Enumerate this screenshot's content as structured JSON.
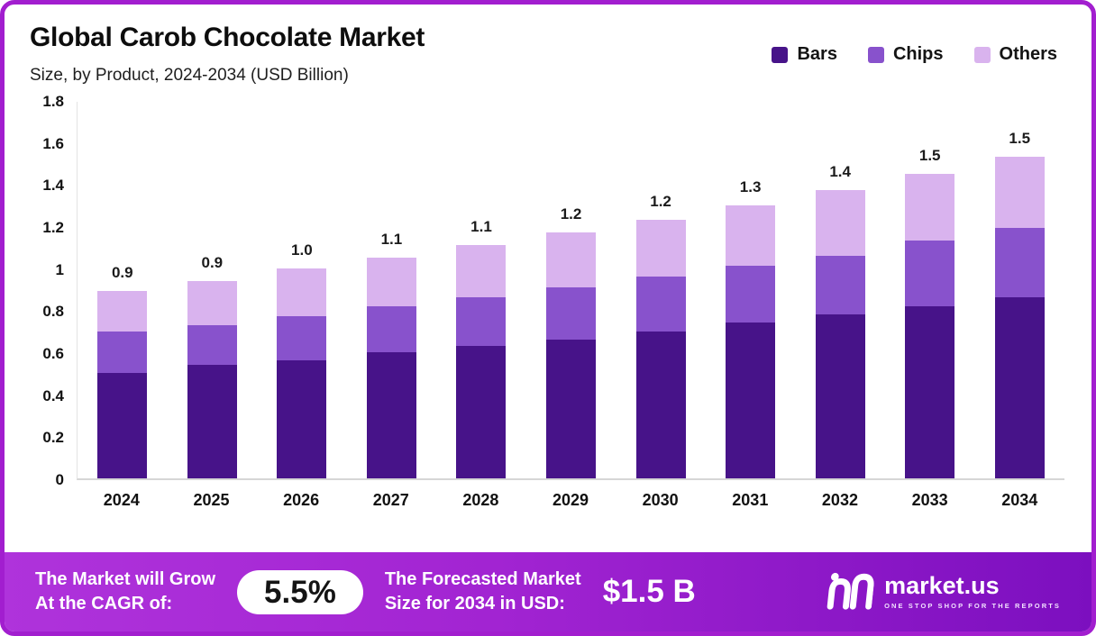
{
  "header": {
    "title": "Global Carob Chocolate Market",
    "subtitle": "Size, by Product, 2024-2034 (USD Billion)"
  },
  "chart_data": {
    "type": "bar",
    "stacked": true,
    "title": "Global Carob Chocolate Market Size, by Product, 2024-2034 (USD Billion)",
    "xlabel": "",
    "ylabel": "USD Billion",
    "ylim": [
      0,
      1.8
    ],
    "yticks": [
      "1.8",
      "1.6",
      "1.4",
      "1.2",
      "1",
      "0.8",
      "0.6",
      "0.4",
      "0.2",
      "0"
    ],
    "grid": false,
    "legend_position": "top-right",
    "categories": [
      "2024",
      "2025",
      "2026",
      "2027",
      "2028",
      "2029",
      "2030",
      "2031",
      "2032",
      "2033",
      "2034"
    ],
    "series": [
      {
        "name": "Bars",
        "color": "#471389",
        "values": [
          0.5,
          0.54,
          0.56,
          0.6,
          0.63,
          0.66,
          0.7,
          0.74,
          0.78,
          0.82,
          0.86
        ]
      },
      {
        "name": "Chips",
        "color": "#8852CC",
        "values": [
          0.2,
          0.19,
          0.21,
          0.22,
          0.23,
          0.25,
          0.26,
          0.27,
          0.28,
          0.31,
          0.33
        ]
      },
      {
        "name": "Others",
        "color": "#D9B3EE",
        "values": [
          0.19,
          0.21,
          0.23,
          0.23,
          0.25,
          0.26,
          0.27,
          0.29,
          0.31,
          0.32,
          0.34
        ]
      }
    ],
    "totals": [
      "0.9",
      "0.9",
      "1.0",
      "1.1",
      "1.1",
      "1.2",
      "1.2",
      "1.3",
      "1.4",
      "1.5",
      "1.5"
    ]
  },
  "footer": {
    "cagr_line1": "The Market will Grow",
    "cagr_line2": "At the CAGR of:",
    "cagr_value": "5.5%",
    "forecast_line1": "The Forecasted Market",
    "forecast_line2": "Size for 2034 in USD:",
    "forecast_value": "$1.5 B",
    "brand_name": "market.us",
    "brand_tagline": "ONE STOP SHOP FOR THE REPORTS"
  },
  "colors": {
    "border": "#A21ECF",
    "footer_gradient_left": "#AF33DB",
    "footer_gradient_right": "#7C0FBF",
    "bars": "#471389",
    "chips": "#8852CC",
    "others": "#D9B3EE"
  }
}
